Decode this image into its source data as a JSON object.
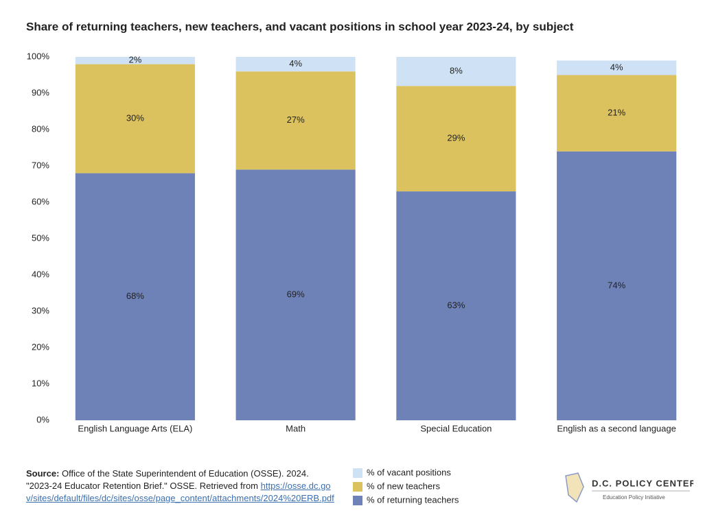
{
  "chart_data": {
    "type": "stacked_bar",
    "title": "Share of returning teachers, new teachers, and vacant positions in school year 2023-24, by subject",
    "categories": [
      "English Language Arts (ELA)",
      "Math",
      "Special Education",
      "English as a second language"
    ],
    "series": [
      {
        "name": "% of returning teachers",
        "color": "#6e82b8",
        "values": [
          68,
          69,
          63,
          74
        ],
        "value_labels": [
          "68%",
          "69%",
          "63%",
          "74%"
        ]
      },
      {
        "name": "% of new teachers",
        "color": "#dcc25e",
        "values": [
          30,
          27,
          29,
          21
        ],
        "value_labels": [
          "30%",
          "27%",
          "29%",
          "21%"
        ]
      },
      {
        "name": "% of vacant positions",
        "color": "#cfe2f5",
        "values": [
          2,
          4,
          8,
          4
        ],
        "value_labels": [
          "2%",
          "4%",
          "8%",
          "4%"
        ]
      }
    ],
    "ylim": [
      0,
      100
    ],
    "yticks": [
      {
        "value": 0,
        "label": "0%"
      },
      {
        "value": 10,
        "label": "10%"
      },
      {
        "value": 20,
        "label": "20%"
      },
      {
        "value": 30,
        "label": "30%"
      },
      {
        "value": 40,
        "label": "40%"
      },
      {
        "value": 50,
        "label": "50%"
      },
      {
        "value": 60,
        "label": "60%"
      },
      {
        "value": 70,
        "label": "70%"
      },
      {
        "value": 80,
        "label": "80%"
      },
      {
        "value": 90,
        "label": "90%"
      },
      {
        "value": 100,
        "label": "100%"
      }
    ],
    "grid": false
  },
  "source": {
    "label": "Source:",
    "text": "Office of the State Superintendent of Education (OSSE). 2024. \"2023-24 Educator Retention Brief.\" OSSE. Retrieved from",
    "link": "https://osse.dc.gov/sites/default/files/dc/sites/osse/page_content/attachments/2024%20ERB.pdf"
  },
  "logo": {
    "name": "D.C. POLICY CENTER",
    "tagline": "Education Policy Initiative"
  }
}
